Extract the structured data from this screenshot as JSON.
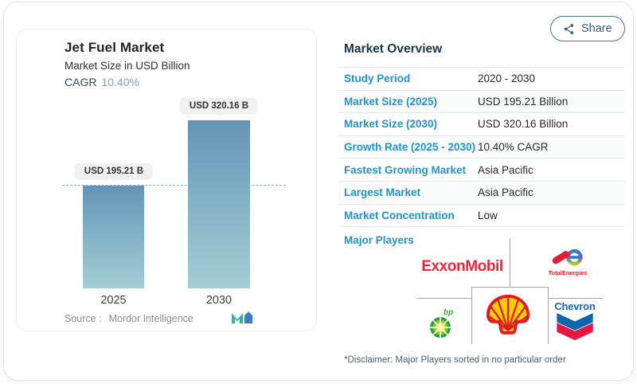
{
  "share_button": {
    "label": "Share"
  },
  "chart": {
    "title": "Jet Fuel Market",
    "subtitle": "Market Size in USD Billion",
    "cagr_label": "CAGR",
    "cagr_value": "10.40%",
    "source_label": "Source :",
    "source_name": "Mordor Intelligence"
  },
  "chart_data": {
    "type": "bar",
    "title": "Jet Fuel Market",
    "subtitle": "Market Size in USD Billion",
    "unit": "USD Billion",
    "categories": [
      "2025",
      "2030"
    ],
    "values": [
      195.21,
      320.16
    ],
    "bar_labels": [
      "USD 195.21 B",
      "USD 320.16 B"
    ],
    "cagr": "10.40%",
    "reference_line": {
      "value": 195.21,
      "style": "dashed"
    },
    "ylim": [
      0,
      340
    ],
    "grid": false,
    "legend": "none",
    "bar_gradient": [
      "#6394b8",
      "#a2ced6"
    ]
  },
  "overview": {
    "title": "Market Overview",
    "rows": [
      {
        "label": "Study Period",
        "value": "2020 - 2030"
      },
      {
        "label": "Market Size (2025)",
        "value": "USD 195.21 Billion"
      },
      {
        "label": "Market Size (2030)",
        "value": "USD 320.16 Billion"
      },
      {
        "label": "Growth Rate (2025 - 2030)",
        "value": "10.40% CAGR"
      },
      {
        "label": "Fastest Growing Market",
        "value": "Asia Pacific"
      },
      {
        "label": "Largest Market",
        "value": "Asia Pacific"
      },
      {
        "label": "Market Concentration",
        "value": "Low"
      }
    ],
    "major_players_label": "Major Players",
    "players": [
      {
        "name": "ExxonMobil"
      },
      {
        "name": "TotalEnergies"
      },
      {
        "name": "bp"
      },
      {
        "name": "Shell"
      },
      {
        "name": "Chevron"
      }
    ],
    "disclaimer": "*Disclaimer: Major Players sorted in no particular order"
  },
  "colors": {
    "accent_blue": "#2193c8",
    "navy": "#18374e",
    "cagr_blue": "#79a5d1",
    "bar_top": "#6394b8",
    "bar_bottom": "#a2ced6",
    "dash_line": "#8aafc9",
    "exxon_red": "#e8263d",
    "total_red": "#e41d34",
    "bp_green": "#2f9e3f",
    "shell_red": "#dd1d21",
    "shell_yellow": "#fbce07",
    "chevron_blue": "#0b66b0",
    "chevron_red": "#e6173e"
  }
}
